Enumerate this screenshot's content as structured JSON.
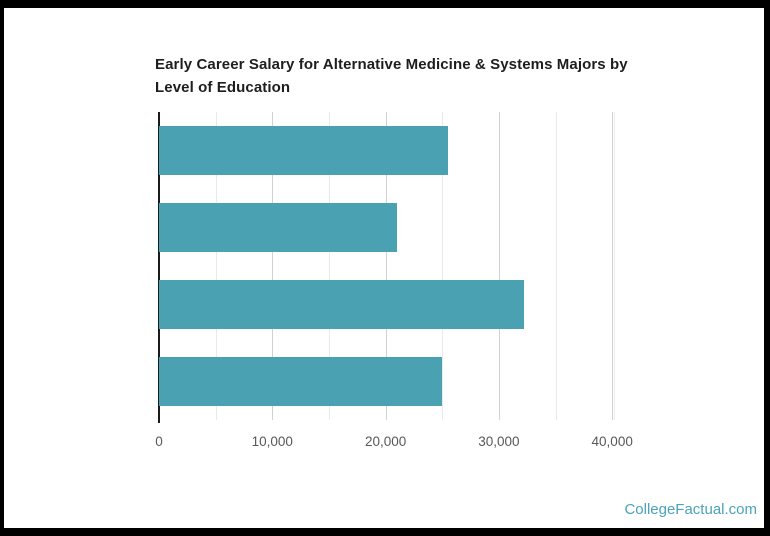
{
  "title": {
    "text": "Early Career Salary for Alternative Medicine & Systems Majors by Level of Education"
  },
  "watermark": {
    "text": "CollegeFactual.com",
    "color": "#4aa3ba"
  },
  "chart_data": {
    "type": "bar",
    "orientation": "horizontal",
    "title": "Early Career Salary for Alternative Medicine & Systems Majors by Level of Education",
    "categories": [
      "",
      "",
      "",
      ""
    ],
    "values": [
      25500,
      21000,
      32200,
      25000
    ],
    "xlabel": "",
    "ylabel": "",
    "x_ticks": [
      0,
      10000,
      20000,
      30000,
      40000
    ],
    "x_tick_labels": [
      "0",
      "10,000",
      "20,000",
      "30,000",
      "40,000"
    ],
    "xlim": [
      0,
      40250
    ],
    "grid_interval": 5000,
    "grid": "vertical",
    "legend": "none",
    "bar_color": "#4aa1b2",
    "axis_line_color": "#1b1b1b"
  }
}
